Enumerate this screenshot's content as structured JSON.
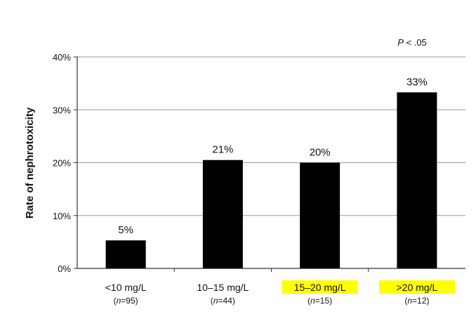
{
  "chart_data": {
    "type": "bar",
    "title": "",
    "xlabel": "",
    "ylabel": "Rate of nephrotoxicity",
    "ylim": [
      0,
      40
    ],
    "yticks": [
      {
        "value": 0,
        "label": "0%"
      },
      {
        "value": 10,
        "label": "10%"
      },
      {
        "value": 20,
        "label": "20%"
      },
      {
        "value": 30,
        "label": "30%"
      },
      {
        "value": 40,
        "label": "40%"
      }
    ],
    "grid": true,
    "categories": [
      "<10 mg/L",
      "10–15 mg/L",
      "15–20 mg/L",
      ">20 mg/L"
    ],
    "n_labels": [
      "n=95",
      "n=44",
      "n=15",
      "n=12"
    ],
    "values": [
      5.3,
      20.5,
      20,
      33.3
    ],
    "data_labels": [
      "5%",
      "21%",
      "20%",
      "33%"
    ],
    "highlighted_categories": [
      false,
      false,
      true,
      true
    ],
    "bar_color": "#000000",
    "highlight_color": "#ffff00",
    "annotation": "P < .05"
  }
}
